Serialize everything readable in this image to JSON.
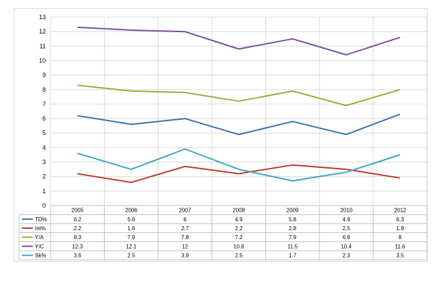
{
  "chart_data": {
    "type": "line",
    "categories": [
      "2005",
      "2006",
      "2007",
      "2008",
      "2009",
      "2010",
      "2012"
    ],
    "ylim": [
      0,
      13
    ],
    "yticks": [
      0,
      1,
      2,
      3,
      4,
      5,
      6,
      7,
      8,
      9,
      10,
      11,
      12,
      13
    ],
    "grid": true,
    "legend": "data-table-left",
    "series": [
      {
        "name": "TD%",
        "color": "#3a6fb0",
        "values": [
          6.2,
          5.6,
          6,
          4.9,
          5.8,
          4.9,
          6.3
        ],
        "labels": [
          "6.2",
          "5.6",
          "6",
          "4.9",
          "5.8",
          "4.9",
          "6.3"
        ]
      },
      {
        "name": "Int%",
        "color": "#c0392b",
        "values": [
          2.2,
          1.6,
          2.7,
          2.2,
          2.8,
          2.5,
          1.9
        ],
        "labels": [
          "2.2",
          "1.6",
          "2.7",
          "2.2",
          "2.8",
          "2.5",
          "1.9"
        ]
      },
      {
        "name": "Y/A",
        "color": "#8db33a",
        "values": [
          8.3,
          7.9,
          7.8,
          7.2,
          7.9,
          6.9,
          8
        ],
        "labels": [
          "8.3",
          "7.9",
          "7.8",
          "7.2",
          "7.9",
          "6.9",
          "8"
        ]
      },
      {
        "name": "Y/C",
        "color": "#7b4f9e",
        "values": [
          12.3,
          12.1,
          12,
          10.8,
          11.5,
          10.4,
          11.6
        ],
        "labels": [
          "12.3",
          "12.1",
          "12",
          "10.8",
          "11.5",
          "10.4",
          "11.6"
        ]
      },
      {
        "name": "Sk%",
        "color": "#3aa6c2",
        "values": [
          3.6,
          2.5,
          3.9,
          2.5,
          1.7,
          2.3,
          3.5
        ],
        "labels": [
          "3.6",
          "2.5",
          "3.9",
          "2.5",
          "1.7",
          "2.3",
          "3.5"
        ]
      }
    ]
  }
}
